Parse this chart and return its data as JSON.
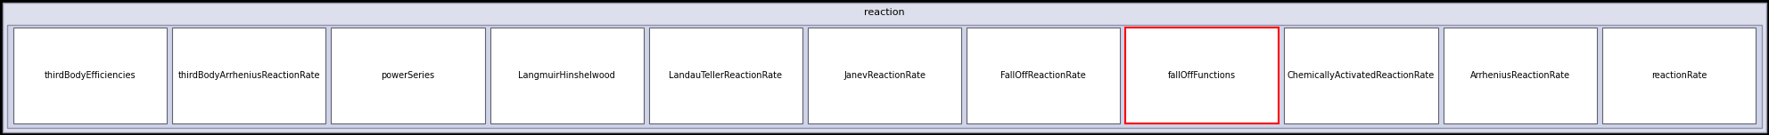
{
  "title": "reaction",
  "title_fontsize": 8,
  "fig_bg": "#000000",
  "outer_bg": "#dde0ec",
  "outer_border": "#9090a8",
  "inner_bg": "#d0d4e8",
  "box_bg": "#ffffff",
  "box_border_normal": "#606070",
  "box_border_highlight": "#ff0000",
  "items": [
    "thirdBodyEfficiencies",
    "thirdBodyArrheniusReactionRate",
    "powerSeries",
    "LangmuirHinshelwood",
    "LandauTellerReactionRate",
    "JanevReactionRate",
    "FallOffReactionRate",
    "fallOffFunctions",
    "ChemicallyActivatedReactionRate",
    "ArrheniusReactionRate",
    "reactionRate"
  ],
  "text_fontsize": 7.0,
  "fig_width": 19.84,
  "fig_height": 1.52
}
